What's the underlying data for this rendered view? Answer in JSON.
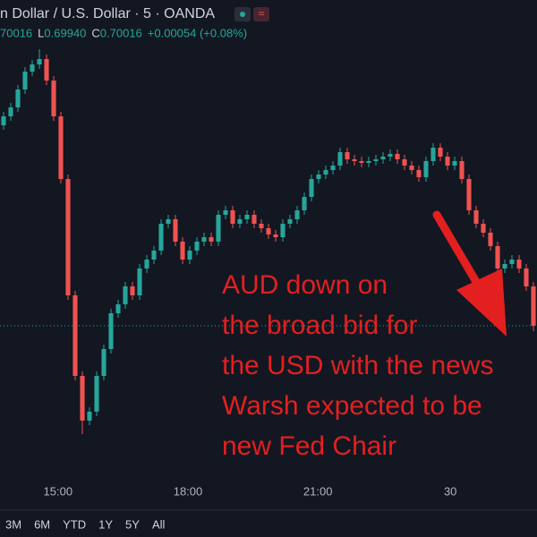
{
  "header": {
    "symbol": "n Dollar / U.S. Dollar · 5 · OANDA",
    "quote": [
      {
        "value": "70016"
      },
      {
        "key": "L",
        "value": "0.69940"
      },
      {
        "key": "C",
        "value": "0.70016"
      },
      {
        "value": "+0.00054 (+0.08%)"
      }
    ]
  },
  "chart_data": {
    "type": "candlestick",
    "up_color": "#26a69a",
    "down_color": "#ef5350",
    "ylim": [
      0.6984,
      0.7038
    ],
    "xlim": [
      -0.5,
      74.5
    ],
    "xticks": [
      {
        "value": 7.6,
        "label": "15:00"
      },
      {
        "value": 25.75,
        "label": "18:00"
      },
      {
        "value": 43.9,
        "label": "21:00"
      },
      {
        "value": 62.4,
        "label": "30"
      }
    ],
    "open": [
      0.7024,
      0.7025,
      0.7026,
      0.7028,
      0.703,
      0.70308,
      0.70314,
      0.7029,
      0.7025,
      0.7018,
      0.7005,
      0.6996,
      0.6991,
      0.6992,
      0.6996,
      0.6999,
      0.7003,
      0.7004,
      0.7006,
      0.7005,
      0.7008,
      0.7009,
      0.701,
      0.7013,
      0.70135,
      0.7011,
      0.7009,
      0.701,
      0.7011,
      0.70115,
      0.7011,
      0.7014,
      0.70145,
      0.7013,
      0.70135,
      0.7014,
      0.7013,
      0.70125,
      0.70118,
      0.70115,
      0.7013,
      0.70135,
      0.70145,
      0.7016,
      0.7018,
      0.70185,
      0.7019,
      0.70195,
      0.7021,
      0.70202,
      0.702,
      0.70198,
      0.702,
      0.70202,
      0.70205,
      0.70208,
      0.70202,
      0.70195,
      0.7019,
      0.70182,
      0.702,
      0.70215,
      0.70205,
      0.70195,
      0.702,
      0.7018,
      0.70145,
      0.7013,
      0.7012,
      0.70105,
      0.7008,
      0.70085,
      0.7009,
      0.7008,
      0.7006
    ],
    "high": [
      0.70255,
      0.70265,
      0.70285,
      0.70305,
      0.70313,
      0.70325,
      0.70319,
      0.70295,
      0.70255,
      0.70185,
      0.70055,
      0.69965,
      0.69925,
      0.69965,
      0.69995,
      0.70035,
      0.70045,
      0.70065,
      0.70065,
      0.70085,
      0.70095,
      0.70105,
      0.70135,
      0.7014,
      0.7014,
      0.70115,
      0.70105,
      0.70115,
      0.7012,
      0.7012,
      0.70145,
      0.7015,
      0.7015,
      0.7014,
      0.70145,
      0.70145,
      0.70135,
      0.7013,
      0.70123,
      0.70135,
      0.7014,
      0.7015,
      0.70165,
      0.70185,
      0.7019,
      0.70195,
      0.702,
      0.70215,
      0.70215,
      0.70207,
      0.70205,
      0.70205,
      0.70207,
      0.7021,
      0.70213,
      0.70213,
      0.70207,
      0.702,
      0.70195,
      0.70205,
      0.7022,
      0.7022,
      0.7021,
      0.70205,
      0.70205,
      0.70185,
      0.7015,
      0.70135,
      0.70125,
      0.7011,
      0.7009,
      0.70095,
      0.70095,
      0.70085,
      0.70065
    ],
    "low": [
      0.70235,
      0.70245,
      0.70255,
      0.70275,
      0.70295,
      0.70303,
      0.70285,
      0.70245,
      0.70175,
      0.70045,
      0.69955,
      0.69895,
      0.69905,
      0.69915,
      0.69955,
      0.69985,
      0.70025,
      0.70035,
      0.70045,
      0.70045,
      0.70075,
      0.70085,
      0.70095,
      0.70125,
      0.70105,
      0.70085,
      0.70085,
      0.70095,
      0.70105,
      0.70105,
      0.70105,
      0.70135,
      0.70125,
      0.70125,
      0.7013,
      0.70125,
      0.7012,
      0.70113,
      0.7011,
      0.7011,
      0.70125,
      0.7013,
      0.7014,
      0.70155,
      0.70175,
      0.7018,
      0.70185,
      0.7019,
      0.70197,
      0.70195,
      0.70193,
      0.70193,
      0.70195,
      0.70197,
      0.702,
      0.70197,
      0.7019,
      0.70185,
      0.70177,
      0.70177,
      0.70195,
      0.702,
      0.7019,
      0.7019,
      0.70175,
      0.7014,
      0.70125,
      0.70115,
      0.701,
      0.70075,
      0.70075,
      0.7008,
      0.70075,
      0.70055,
      0.7001
    ],
    "close": [
      0.7025,
      0.7026,
      0.7028,
      0.703,
      0.70308,
      0.70314,
      0.7029,
      0.7025,
      0.7018,
      0.7005,
      0.6996,
      0.6991,
      0.6992,
      0.6996,
      0.6999,
      0.7003,
      0.7004,
      0.7006,
      0.7005,
      0.7008,
      0.7009,
      0.701,
      0.7013,
      0.70135,
      0.7011,
      0.7009,
      0.701,
      0.7011,
      0.70115,
      0.7011,
      0.7014,
      0.70145,
      0.7013,
      0.70135,
      0.7014,
      0.7013,
      0.70125,
      0.70118,
      0.70115,
      0.7013,
      0.70135,
      0.70145,
      0.7016,
      0.7018,
      0.70185,
      0.7019,
      0.70195,
      0.7021,
      0.70202,
      0.702,
      0.70198,
      0.702,
      0.70202,
      0.70205,
      0.70208,
      0.70202,
      0.70195,
      0.7019,
      0.70182,
      0.702,
      0.70215,
      0.70205,
      0.70195,
      0.702,
      0.7018,
      0.70145,
      0.7013,
      0.7012,
      0.70105,
      0.7008,
      0.70085,
      0.7009,
      0.7008,
      0.7006,
      0.70016
    ],
    "annotation": [
      "AUD down on",
      "the broad bid for",
      "the USD with the news",
      "Warsh expected to be",
      "new Fed Chair"
    ],
    "annotation_color": "#e41f1f"
  },
  "range_buttons": [
    "3M",
    "6M",
    "YTD",
    "1Y",
    "5Y",
    "All"
  ]
}
